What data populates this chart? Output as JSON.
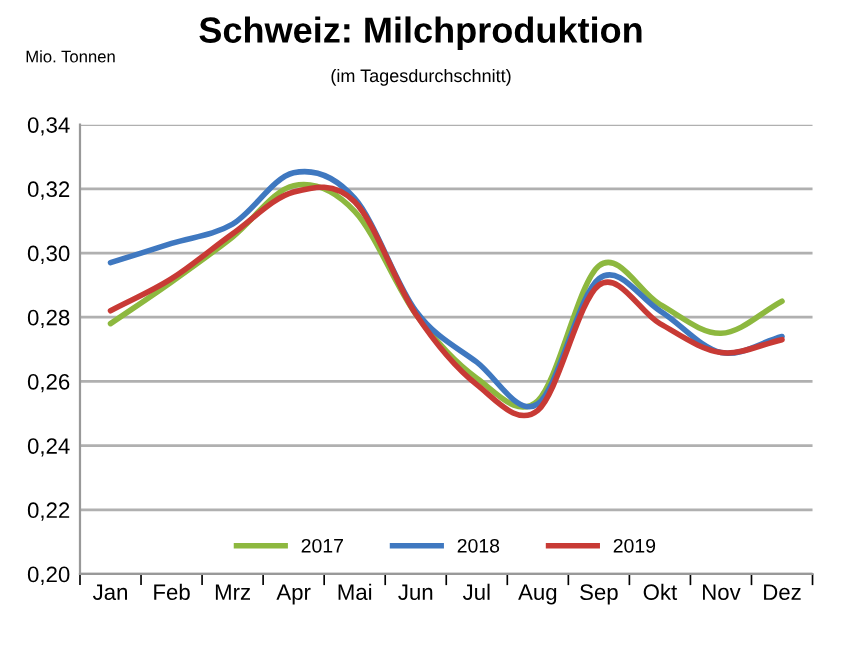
{
  "chart_data": {
    "type": "line",
    "title": "Schweiz: Milchproduktion",
    "subtitle": "(im Tagesdurchschnitt)",
    "ylabel": "Mio. Tonnen",
    "categories": [
      "Jan",
      "Feb",
      "Mrz",
      "Apr",
      "Mai",
      "Jun",
      "Jul",
      "Aug",
      "Sep",
      "Okt",
      "Nov",
      "Dez"
    ],
    "series": [
      {
        "name": "2017",
        "color": "#8db83f",
        "values": [
          0.278,
          0.291,
          0.305,
          0.321,
          0.313,
          0.281,
          0.261,
          0.254,
          0.296,
          0.284,
          0.275,
          0.285
        ]
      },
      {
        "name": "2018",
        "color": "#3f78c0",
        "values": [
          0.297,
          0.303,
          0.309,
          0.325,
          0.317,
          0.282,
          0.266,
          0.253,
          0.292,
          0.282,
          0.269,
          0.274
        ]
      },
      {
        "name": "2019",
        "color": "#c83a35",
        "values": [
          0.282,
          0.292,
          0.306,
          0.319,
          0.316,
          0.281,
          0.259,
          0.251,
          0.29,
          0.278,
          0.269,
          0.273
        ]
      }
    ],
    "ylim": [
      0.2,
      0.34
    ],
    "yticks": [
      {
        "value": 0.2,
        "label": "0,20"
      },
      {
        "value": 0.22,
        "label": "0,22"
      },
      {
        "value": 0.24,
        "label": "0,24"
      },
      {
        "value": 0.26,
        "label": "0,26"
      },
      {
        "value": 0.28,
        "label": "0,28"
      },
      {
        "value": 0.3,
        "label": "0,30"
      },
      {
        "value": 0.32,
        "label": "0,32"
      },
      {
        "value": 0.34,
        "label": "0,34"
      }
    ],
    "grid": "y",
    "legend": "bottom",
    "marker": "none",
    "line_style": "solid"
  }
}
